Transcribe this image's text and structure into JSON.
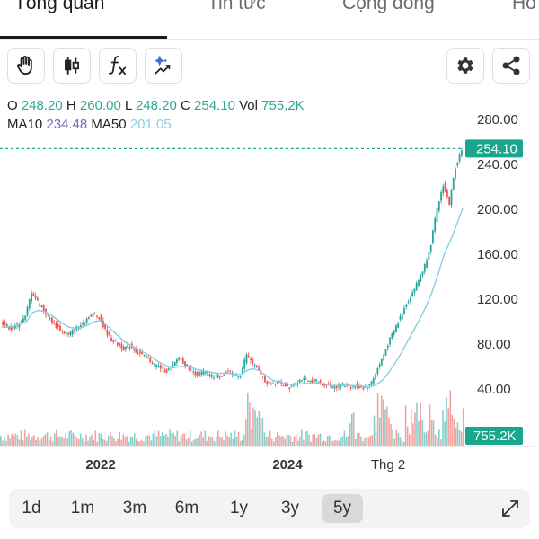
{
  "tabs": [
    {
      "label": "Tổng quan",
      "active": true
    },
    {
      "label": "Tin tức",
      "active": false
    },
    {
      "label": "Cộng đồng",
      "active": false
    },
    {
      "label": "Ho",
      "active": false
    }
  ],
  "toolbar": {
    "left_icons": [
      "hand-icon",
      "candlestick-icon",
      "function-icon",
      "sparkle-chart-icon"
    ],
    "right_icons": [
      "gear-icon",
      "share-icon"
    ]
  },
  "ohlc": {
    "o_label": "O",
    "o_value": "248.20",
    "h_label": "H",
    "h_value": "260.00",
    "l_label": "L",
    "l_value": "248.20",
    "c_label": "C",
    "c_value": "254.10",
    "vol_label": "Vol",
    "vol_value": "755,2K",
    "ma10_label": "MA10",
    "ma10_value": "234.48",
    "ma50_label": "MA50",
    "ma50_value": "201.05"
  },
  "chart_data": {
    "type": "line",
    "y_ticks": [
      "280.00",
      "240.00",
      "200.00",
      "160.00",
      "120.00",
      "80.00",
      "40.00"
    ],
    "y_tick_values": [
      280,
      240,
      200,
      160,
      120,
      80,
      40
    ],
    "x_labels": [
      "2022",
      "2024",
      "Thg 2"
    ],
    "last_price_label": "254.10",
    "last_price": 254.1,
    "volume_label": "755.2K",
    "price": [
      100,
      96,
      93,
      99,
      104,
      127,
      118,
      110,
      102,
      96,
      91,
      88,
      93,
      97,
      103,
      107,
      104,
      92,
      84,
      80,
      76,
      79,
      74,
      70,
      66,
      62,
      59,
      56,
      60,
      69,
      62,
      57,
      53,
      55,
      52,
      51,
      53,
      55,
      52,
      53,
      71,
      63,
      56,
      48,
      43,
      46,
      44,
      42,
      46,
      49,
      46,
      48,
      45,
      44,
      42,
      43,
      44,
      42,
      43,
      41,
      43,
      54,
      66,
      80,
      92,
      104,
      116,
      126,
      137,
      150,
      170,
      200,
      222,
      205,
      238,
      254.1
    ],
    "ma50": [
      95,
      95,
      96,
      98,
      100,
      108,
      110,
      109,
      106,
      102,
      98,
      95,
      94,
      95,
      97,
      100,
      101,
      97,
      92,
      87,
      82,
      79,
      76,
      73,
      70,
      66,
      63,
      60,
      59,
      60,
      60,
      59,
      57,
      56,
      55,
      54,
      54,
      54,
      53,
      53,
      57,
      58,
      56,
      52,
      48,
      46,
      45,
      44,
      44,
      45,
      45,
      45,
      45,
      44,
      43,
      43,
      43,
      43,
      43,
      42,
      42,
      44,
      48,
      55,
      63,
      72,
      82,
      92,
      102,
      113,
      126,
      142,
      160,
      172,
      186,
      201.05
    ],
    "volume_heavy_index": [
      40,
      41,
      42,
      57,
      61,
      62,
      63,
      66,
      67,
      68,
      70,
      72,
      73,
      74,
      75
    ]
  },
  "periods": [
    {
      "label": "1d",
      "active": false
    },
    {
      "label": "1m",
      "active": false
    },
    {
      "label": "3m",
      "active": false
    },
    {
      "label": "6m",
      "active": false
    },
    {
      "label": "1y",
      "active": false
    },
    {
      "label": "3y",
      "active": false
    },
    {
      "label": "5y",
      "active": true
    }
  ],
  "colors": {
    "up": "#26a69a",
    "down": "#ef5350",
    "ma10": "#7b6ab6",
    "ma50": "#8ccbe6",
    "accent": "#1aa58f"
  }
}
